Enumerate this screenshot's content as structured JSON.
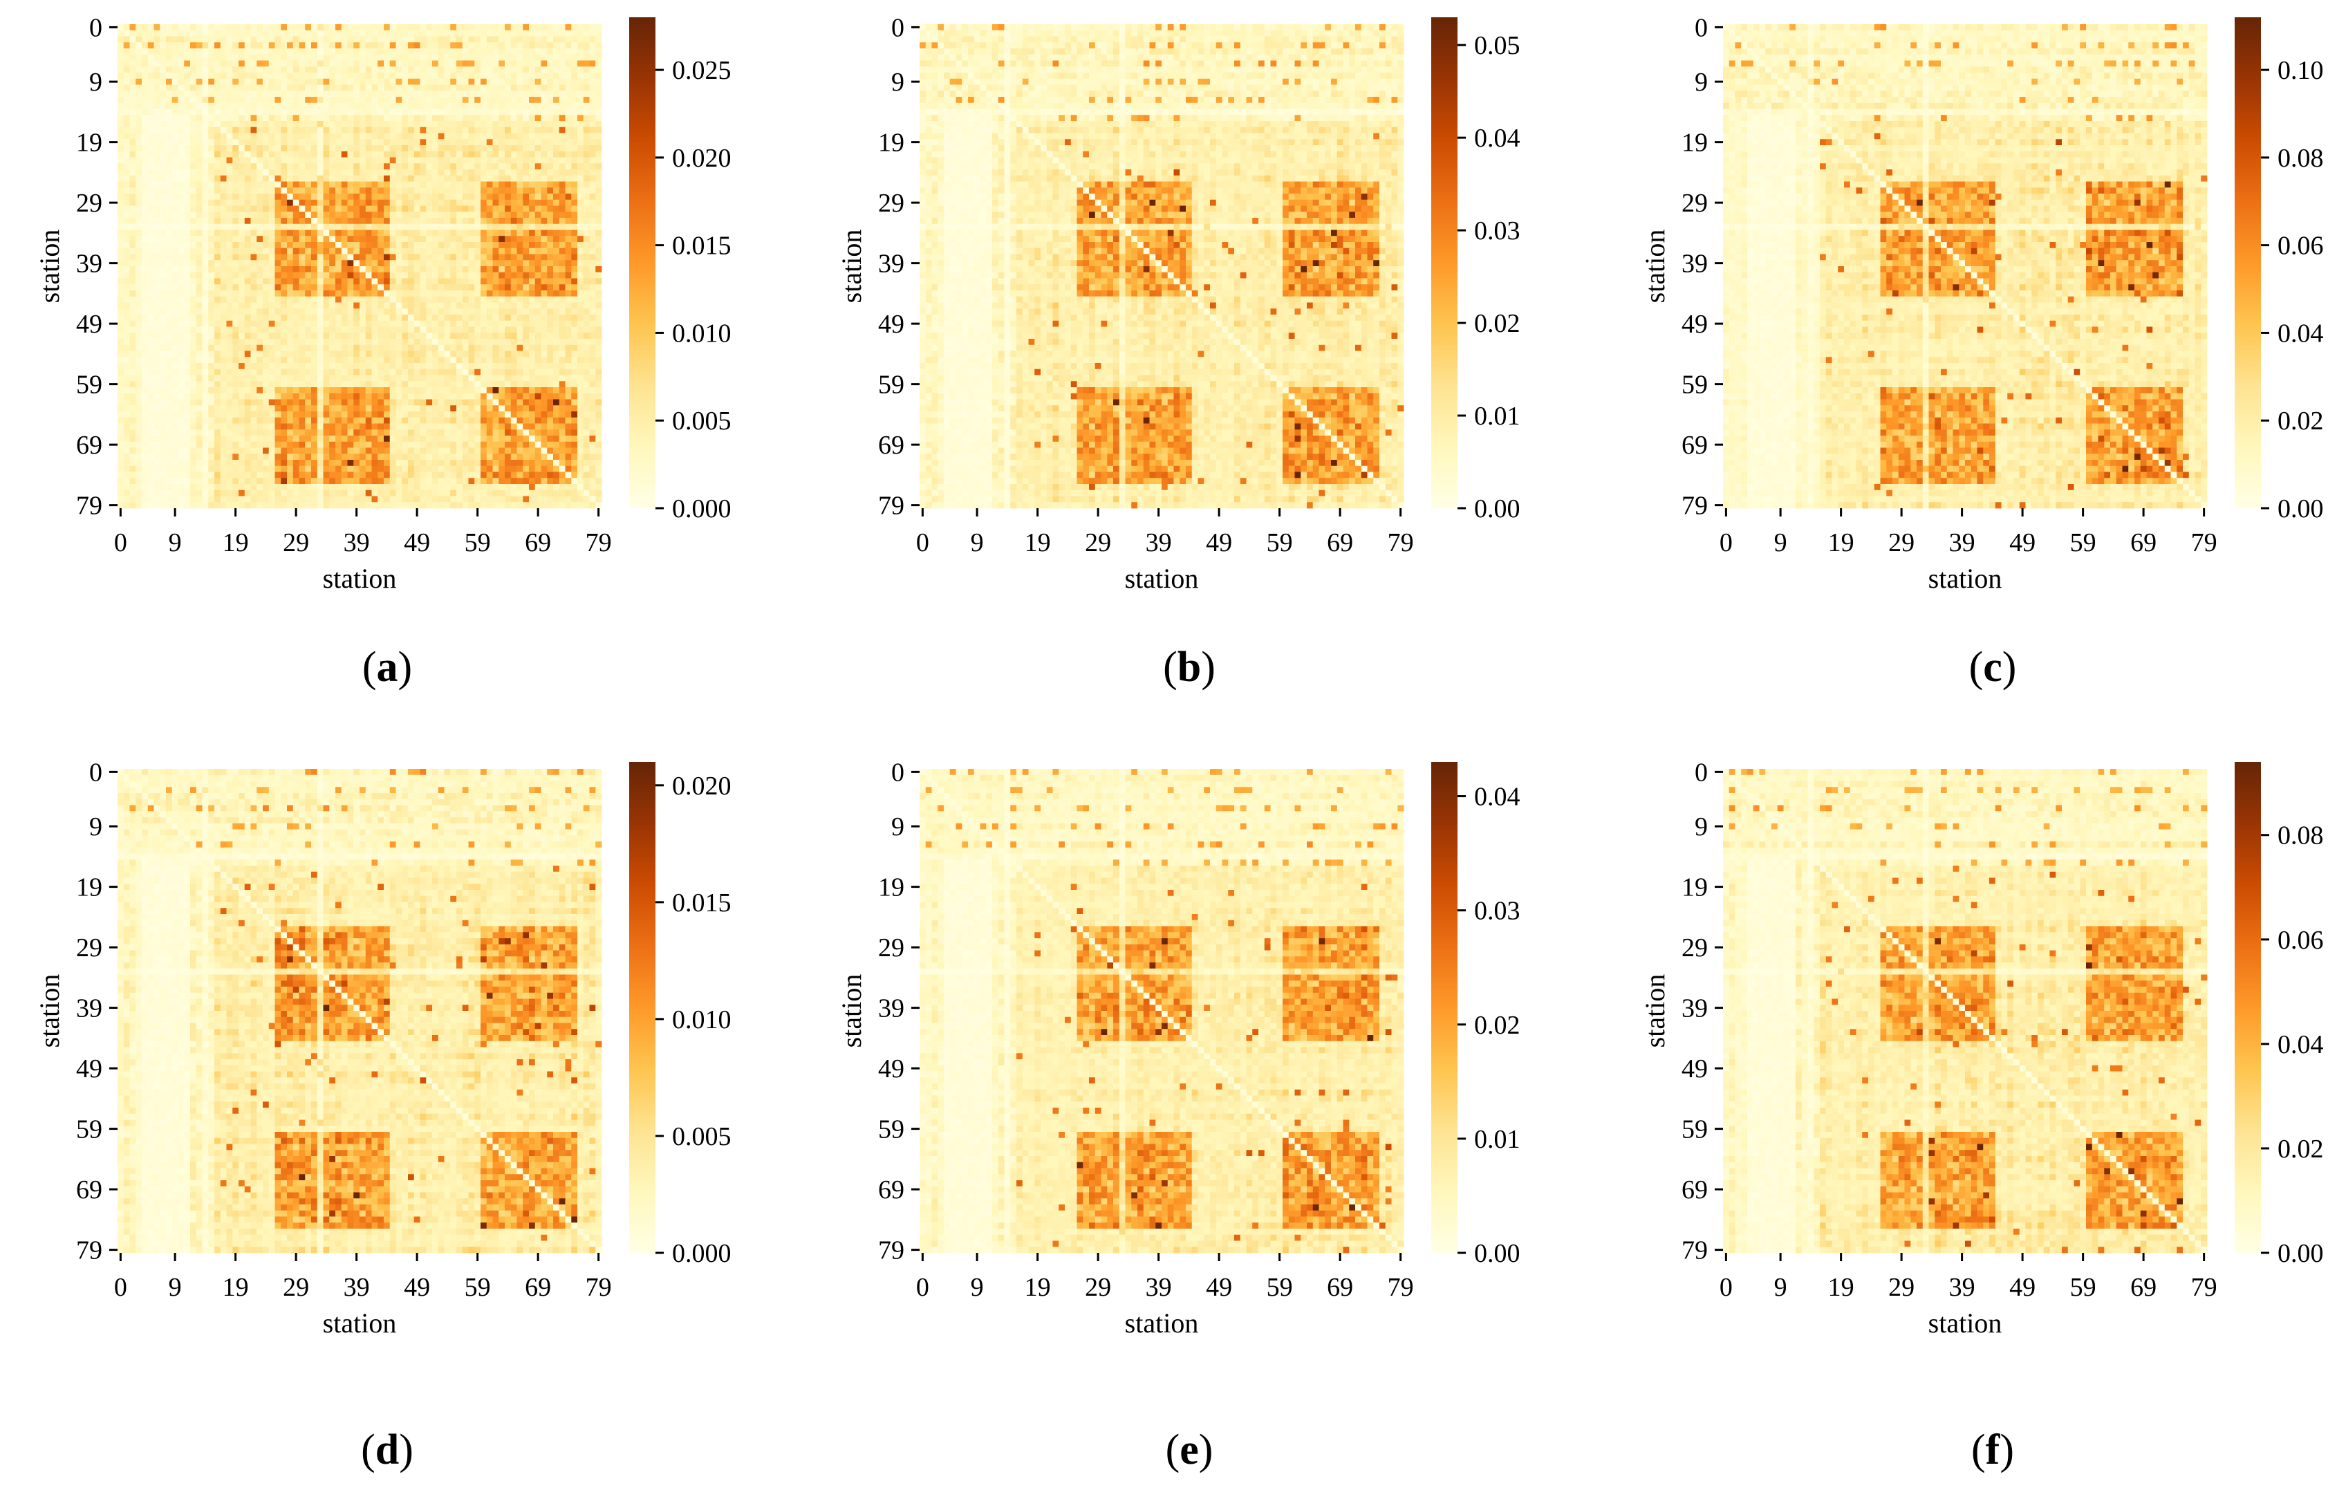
{
  "palette": {
    "colormap": "YlOrBr",
    "stops": [
      "#ffffe5",
      "#fff7bc",
      "#fee391",
      "#fec44f",
      "#fe9929",
      "#ec7014",
      "#cc4c02",
      "#993404",
      "#662506"
    ],
    "background": "#ffffff"
  },
  "chart_data": [
    {
      "type": "heatmap",
      "panel_label": "a",
      "xlabel": "station",
      "ylabel": "station",
      "x_ticks": [
        "0",
        "9",
        "19",
        "29",
        "39",
        "49",
        "59",
        "69",
        "79"
      ],
      "y_ticks": [
        "0",
        "9",
        "19",
        "29",
        "39",
        "49",
        "59",
        "69",
        "79"
      ],
      "size": 80,
      "colorbar_range": [
        0,
        0.028
      ],
      "colorbar_ticks": [
        "0.000",
        "0.005",
        "0.010",
        "0.015",
        "0.020",
        "0.025"
      ],
      "colorbar_tick_values": [
        0,
        0.005,
        0.01,
        0.015,
        0.02,
        0.025
      ],
      "seed": 11
    },
    {
      "type": "heatmap",
      "panel_label": "b",
      "xlabel": "station",
      "ylabel": "station",
      "x_ticks": [
        "0",
        "9",
        "19",
        "29",
        "39",
        "49",
        "59",
        "69",
        "79"
      ],
      "y_ticks": [
        "0",
        "9",
        "19",
        "29",
        "39",
        "49",
        "59",
        "69",
        "79"
      ],
      "size": 80,
      "colorbar_range": [
        0,
        0.053
      ],
      "colorbar_ticks": [
        "0.00",
        "0.01",
        "0.02",
        "0.03",
        "0.04",
        "0.05"
      ],
      "colorbar_tick_values": [
        0,
        0.01,
        0.02,
        0.03,
        0.04,
        0.05
      ],
      "seed": 23
    },
    {
      "type": "heatmap",
      "panel_label": "c",
      "xlabel": "station",
      "ylabel": "station",
      "x_ticks": [
        "0",
        "9",
        "19",
        "29",
        "39",
        "49",
        "59",
        "69",
        "79"
      ],
      "y_ticks": [
        "0",
        "9",
        "19",
        "29",
        "39",
        "49",
        "59",
        "69",
        "79"
      ],
      "size": 80,
      "colorbar_range": [
        0,
        0.112
      ],
      "colorbar_ticks": [
        "0.00",
        "0.02",
        "0.04",
        "0.06",
        "0.08",
        "0.10"
      ],
      "colorbar_tick_values": [
        0,
        0.02,
        0.04,
        0.06,
        0.08,
        0.1
      ],
      "seed": 37
    },
    {
      "type": "heatmap",
      "panel_label": "d",
      "xlabel": "station",
      "ylabel": "station",
      "x_ticks": [
        "0",
        "9",
        "19",
        "29",
        "39",
        "49",
        "59",
        "69",
        "79"
      ],
      "y_ticks": [
        "0",
        "9",
        "19",
        "29",
        "39",
        "49",
        "59",
        "69",
        "79"
      ],
      "size": 80,
      "colorbar_range": [
        0,
        0.021
      ],
      "colorbar_ticks": [
        "0.000",
        "0.005",
        "0.010",
        "0.015",
        "0.020"
      ],
      "colorbar_tick_values": [
        0,
        0.005,
        0.01,
        0.015,
        0.02
      ],
      "seed": 41
    },
    {
      "type": "heatmap",
      "panel_label": "e",
      "xlabel": "station",
      "ylabel": "station",
      "x_ticks": [
        "0",
        "9",
        "19",
        "29",
        "39",
        "49",
        "59",
        "69",
        "79"
      ],
      "y_ticks": [
        "0",
        "9",
        "19",
        "29",
        "39",
        "49",
        "59",
        "69",
        "79"
      ],
      "size": 80,
      "colorbar_range": [
        0,
        0.043
      ],
      "colorbar_ticks": [
        "0.00",
        "0.01",
        "0.02",
        "0.03",
        "0.04"
      ],
      "colorbar_tick_values": [
        0,
        0.01,
        0.02,
        0.03,
        0.04
      ],
      "seed": 53
    },
    {
      "type": "heatmap",
      "panel_label": "f",
      "xlabel": "station",
      "ylabel": "station",
      "x_ticks": [
        "0",
        "9",
        "19",
        "29",
        "39",
        "49",
        "59",
        "69",
        "79"
      ],
      "y_ticks": [
        "0",
        "9",
        "19",
        "29",
        "39",
        "49",
        "59",
        "69",
        "79"
      ],
      "size": 80,
      "colorbar_range": [
        0,
        0.094
      ],
      "colorbar_ticks": [
        "0.00",
        "0.02",
        "0.04",
        "0.06",
        "0.08"
      ],
      "colorbar_tick_values": [
        0,
        0.02,
        0.04,
        0.06,
        0.08
      ],
      "seed": 67
    }
  ]
}
